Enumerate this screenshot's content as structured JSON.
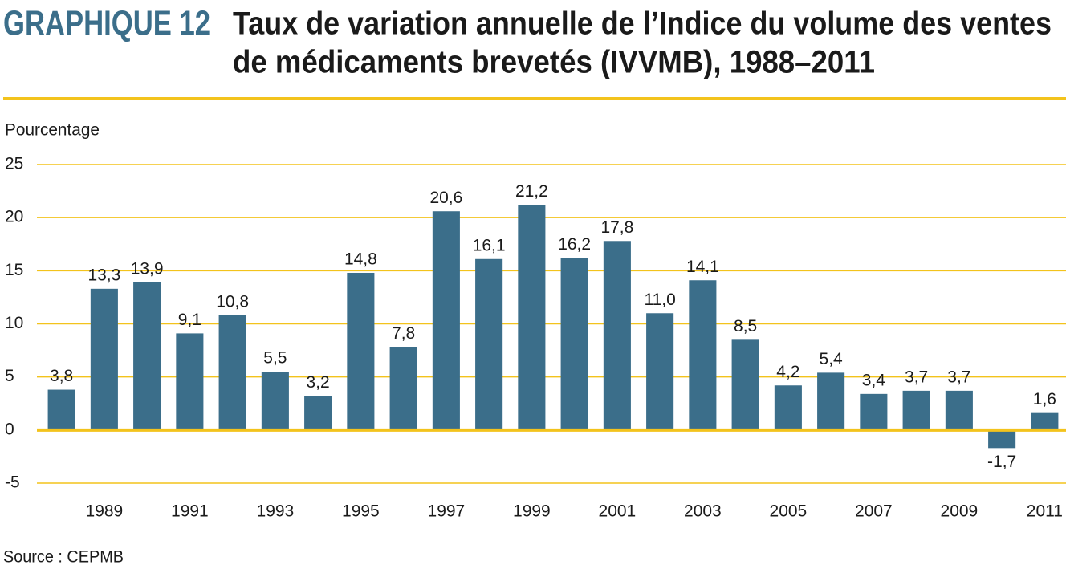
{
  "chart_data": {
    "type": "bar",
    "label": "GRAPHIQUE 12",
    "title": [
      "Taux de variation annuelle de l’Indice du volume des ventes",
      "de médicaments brevetés (IVVMB), 1988–2011"
    ],
    "y_label": "Pourcentage",
    "source": "Source : CEPMB",
    "categories": [
      null,
      "1989",
      null,
      "1991",
      null,
      "1993",
      null,
      "1995",
      null,
      "1997",
      null,
      "1999",
      null,
      "2001",
      null,
      "2003",
      null,
      "2005",
      null,
      "2007",
      null,
      "2009",
      null,
      "2011"
    ],
    "values": [
      3.8,
      13.3,
      13.9,
      9.1,
      10.8,
      5.5,
      3.2,
      14.8,
      7.8,
      20.6,
      16.1,
      21.2,
      16.2,
      17.8,
      11.0,
      14.1,
      8.5,
      4.2,
      5.4,
      3.4,
      3.7,
      3.7,
      -1.7,
      1.6
    ],
    "value_labels": [
      "3,8",
      "13,3",
      "13,9",
      "9,1",
      "10,8",
      "5,5",
      "3,2",
      "14,8",
      "7,8",
      "20,6",
      "16,1",
      "21,2",
      "16,2",
      "17,8",
      "11,0",
      "14,1",
      "8,5",
      "4,2",
      "5,4",
      "3,4",
      "3,7",
      "3,7",
      "-1,7",
      "1,6"
    ],
    "color": "#3b6e8a",
    "grid_color": "#f3c31c",
    "label_color": "#3b6e8a",
    "ylim": [
      -5,
      25
    ],
    "yticks": [
      -5,
      0,
      5,
      10,
      15,
      20,
      25
    ],
    "grid": true
  }
}
